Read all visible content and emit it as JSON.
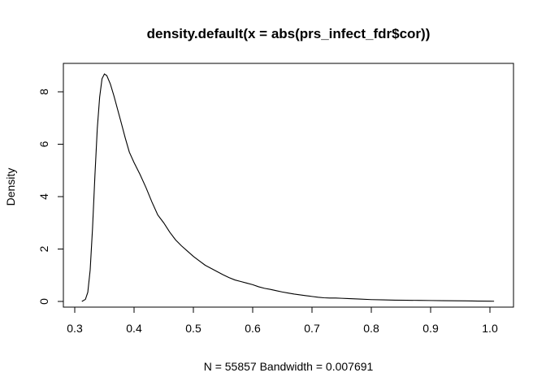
{
  "chart_data": {
    "type": "line",
    "title": "density.default(x = abs(prs_infect_fdr$cor))",
    "xlabel": "N = 55857   Bandwidth = 0.007691",
    "ylabel": "Density",
    "xlim": [
      0.3,
      1.03
    ],
    "ylim": [
      0,
      8.7
    ],
    "x_ticks": [
      0.3,
      0.4,
      0.5,
      0.6,
      0.7,
      0.8,
      0.9,
      1.0
    ],
    "x_tick_labels": [
      "0.3",
      "0.4",
      "0.5",
      "0.6",
      "0.7",
      "0.8",
      "0.9",
      "1.0"
    ],
    "y_ticks": [
      0,
      2,
      4,
      6,
      8
    ],
    "y_tick_labels": [
      "0",
      "2",
      "4",
      "6",
      "8"
    ],
    "grid": false,
    "legend": "none",
    "line_color": "#000000",
    "series": [
      {
        "x": [
          0.312,
          0.318,
          0.322,
          0.326,
          0.33,
          0.334,
          0.338,
          0.342,
          0.346,
          0.35,
          0.354,
          0.36,
          0.366,
          0.372,
          0.378,
          0.385,
          0.392,
          0.4,
          0.41,
          0.42,
          0.43,
          0.44,
          0.45,
          0.46,
          0.47,
          0.48,
          0.49,
          0.5,
          0.51,
          0.52,
          0.53,
          0.54,
          0.55,
          0.56,
          0.57,
          0.58,
          0.59,
          0.6,
          0.61,
          0.62,
          0.63,
          0.64,
          0.65,
          0.66,
          0.67,
          0.68,
          0.69,
          0.7,
          0.71,
          0.72,
          0.73,
          0.74,
          0.75,
          0.76,
          0.78,
          0.8,
          0.82,
          0.84,
          0.86,
          0.88,
          0.9,
          0.92,
          0.94,
          0.96,
          0.98,
          1.0,
          1.007
        ],
        "y": [
          0.0,
          0.08,
          0.35,
          1.2,
          2.8,
          4.8,
          6.6,
          7.8,
          8.5,
          8.68,
          8.62,
          8.3,
          7.85,
          7.35,
          6.85,
          6.25,
          5.7,
          5.3,
          4.85,
          4.35,
          3.8,
          3.3,
          3.0,
          2.65,
          2.35,
          2.12,
          1.92,
          1.72,
          1.55,
          1.38,
          1.26,
          1.14,
          1.02,
          0.91,
          0.82,
          0.76,
          0.7,
          0.64,
          0.56,
          0.5,
          0.46,
          0.41,
          0.36,
          0.32,
          0.28,
          0.25,
          0.22,
          0.19,
          0.16,
          0.14,
          0.13,
          0.13,
          0.12,
          0.11,
          0.09,
          0.07,
          0.06,
          0.05,
          0.045,
          0.04,
          0.035,
          0.03,
          0.025,
          0.02,
          0.015,
          0.01,
          0.008
        ]
      }
    ]
  }
}
